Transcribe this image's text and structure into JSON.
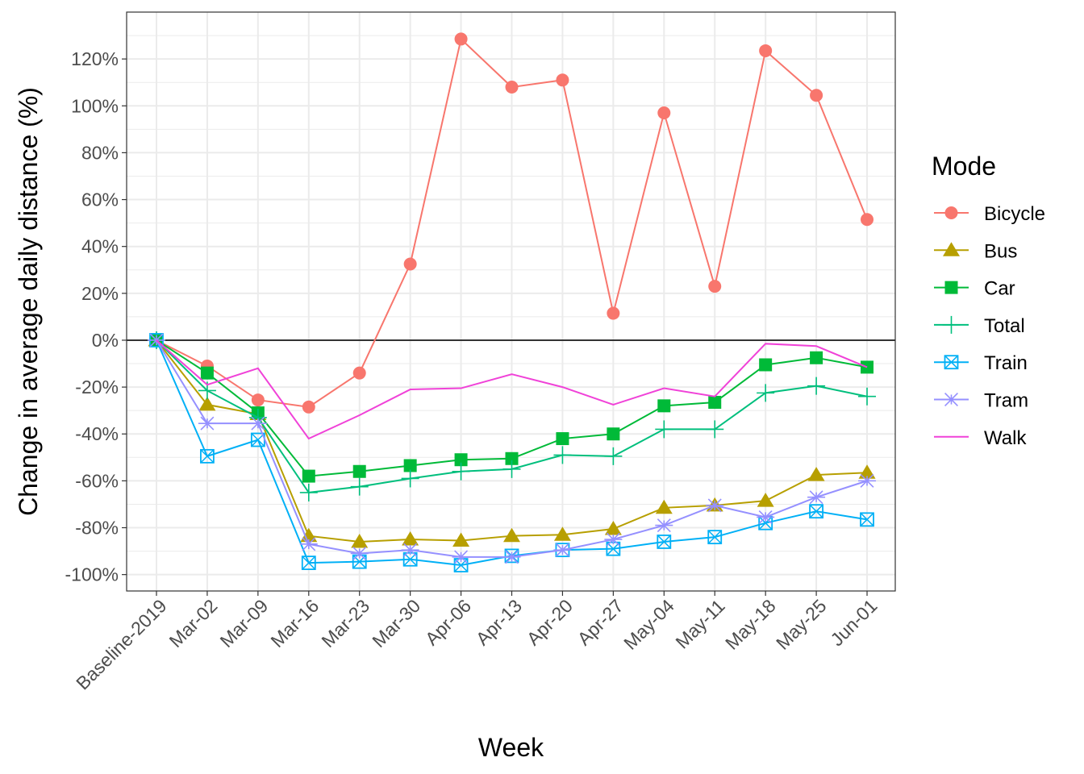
{
  "chart_data": {
    "type": "line",
    "xlabel": "Week",
    "ylabel": "Change in average daily distance (%)",
    "categories": [
      "Baseline-2019",
      "Mar-02",
      "Mar-09",
      "Mar-16",
      "Mar-23",
      "Mar-30",
      "Apr-06",
      "Apr-13",
      "Apr-20",
      "Apr-27",
      "May-04",
      "May-11",
      "May-18",
      "May-25",
      "Jun-01"
    ],
    "ylim": [
      -107,
      140
    ],
    "yticks": [
      -100,
      -80,
      -60,
      -40,
      -20,
      0,
      20,
      40,
      60,
      80,
      100,
      120
    ],
    "ytick_labels": [
      "-100%",
      "-80%",
      "-60%",
      "-40%",
      "-20%",
      "0%",
      "20%",
      "40%",
      "60%",
      "80%",
      "100%",
      "120%"
    ],
    "reference_line": 0,
    "grid": true,
    "legend": {
      "title": "Mode",
      "position": "right"
    },
    "series": [
      {
        "name": "Bicycle",
        "color": "#F8766D",
        "marker": "circle",
        "values": [
          0,
          -11,
          -25.5,
          -28.5,
          -14,
          32.5,
          128.5,
          108,
          111,
          11.5,
          97,
          23,
          123.5,
          104.5,
          51.5
        ]
      },
      {
        "name": "Bus",
        "color": "#B79F00",
        "marker": "triangle",
        "values": [
          0,
          -27.5,
          -31.5,
          -83.5,
          -86,
          -85,
          -85.5,
          -83.5,
          -83,
          -80.5,
          -71.5,
          -70.5,
          -68.5,
          -57.5,
          -56.5
        ]
      },
      {
        "name": "Car",
        "color": "#00BA38",
        "marker": "square",
        "values": [
          0,
          -14,
          -31,
          -58,
          -56,
          -53.5,
          -51,
          -50.5,
          -42,
          -40,
          -28,
          -26.5,
          -10.5,
          -7.5,
          -11.5
        ]
      },
      {
        "name": "Total",
        "color": "#00BF7D",
        "marker": "plus",
        "values": [
          0,
          -21.5,
          -33,
          -65,
          -62.5,
          -59,
          -56,
          -55,
          -49,
          -49.5,
          -38,
          -38,
          -22.5,
          -19.5,
          -24
        ]
      },
      {
        "name": "Train",
        "color": "#00B0F6",
        "marker": "square-x",
        "values": [
          0,
          -49.5,
          -42.5,
          -95,
          -94.5,
          -93.5,
          -96,
          -92,
          -89.5,
          -89,
          -86,
          -84,
          -78,
          -73,
          -76.5
        ]
      },
      {
        "name": "Tram",
        "color": "#9590FF",
        "marker": "asterisk",
        "values": [
          0,
          -35.5,
          -35.5,
          -87,
          -91,
          -89.5,
          -92.5,
          -92.5,
          -89.5,
          -85,
          -79,
          -70.5,
          -75.5,
          -67,
          -60
        ]
      },
      {
        "name": "Walk",
        "color": "#F042D8",
        "marker": "none",
        "values": [
          0,
          -19,
          -12,
          -42,
          -32,
          -21,
          -20.5,
          -14.5,
          -20,
          -27.5,
          -20.5,
          -24,
          -1.5,
          -2.5,
          -11.5
        ]
      }
    ]
  }
}
